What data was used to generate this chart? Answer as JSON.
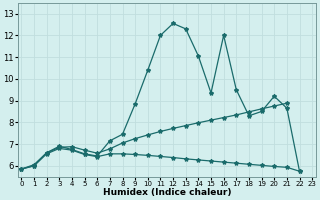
{
  "xlabel": "Humidex (Indice chaleur)",
  "background_color": "#d4efee",
  "line_color": "#1a6b6b",
  "grid_color": "#c0dede",
  "x_values": [
    0,
    1,
    2,
    3,
    4,
    5,
    6,
    7,
    8,
    9,
    10,
    11,
    12,
    13,
    14,
    15,
    16,
    17,
    18,
    19,
    20,
    21,
    22,
    23
  ],
  "line1_y": [
    5.85,
    6.0,
    6.6,
    6.9,
    6.75,
    6.55,
    6.45,
    7.15,
    7.45,
    8.85,
    10.4,
    12.0,
    12.55,
    12.3,
    11.05,
    9.35,
    12.0,
    9.5,
    8.3,
    8.5,
    9.2,
    8.65,
    5.75,
    null
  ],
  "line2_y": [
    5.85,
    6.05,
    6.6,
    6.85,
    6.88,
    6.72,
    6.58,
    6.78,
    7.05,
    7.25,
    7.42,
    7.58,
    7.72,
    7.85,
    7.98,
    8.1,
    8.22,
    8.34,
    8.48,
    8.62,
    8.75,
    8.88,
    null,
    null
  ],
  "line3_y": [
    5.85,
    6.0,
    6.55,
    6.8,
    6.72,
    6.52,
    6.42,
    6.55,
    6.55,
    6.52,
    6.48,
    6.43,
    6.38,
    6.32,
    6.27,
    6.22,
    6.17,
    6.12,
    6.07,
    6.02,
    5.97,
    5.93,
    5.75,
    null
  ],
  "ylim": [
    5.5,
    13.5
  ],
  "yticks": [
    6,
    7,
    8,
    9,
    10,
    11,
    12,
    13
  ],
  "xlim": [
    -0.3,
    23.3
  ],
  "xticks": [
    0,
    1,
    2,
    3,
    4,
    5,
    6,
    7,
    8,
    9,
    10,
    11,
    12,
    13,
    14,
    15,
    16,
    17,
    18,
    19,
    20,
    21,
    22,
    23
  ]
}
